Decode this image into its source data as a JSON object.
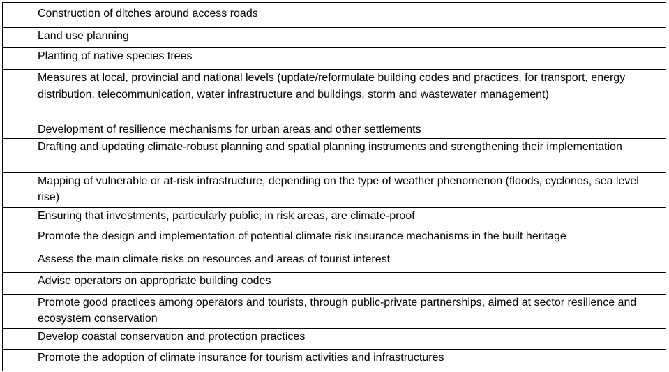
{
  "table": {
    "rows": [
      "Construction of ditches around access roads",
      "Land use planning",
      "Planting of native species trees",
      "Measures at local, provincial and national levels (update/reformulate building codes and practices, for transport, energy distribution, telecommunication, water infrastructure and buildings,  storm and wastewater management)",
      "Development of resilience mechanisms for urban areas and other settlements",
      "Drafting and updating climate-robust planning and spatial planning instruments and strengthening their implementation",
      "Mapping of vulnerable or at-risk infrastructure, depending on the type of weather phenomenon (floods, cyclones, sea level rise)",
      "Ensuring that investments, particularly public, in risk areas, are climate-proof",
      "Promote the design and implementation of potential climate risk insurance mechanisms in the built heritage",
      "Assess the main climate risks on resources and areas of tourist interest",
      "Advise operators on appropriate building codes",
      "Promote good practices among operators and tourists, through public-private partnerships, aimed at sector resilience and ecosystem conservation",
      "Develop coastal conservation and protection practices",
      "Promote the adoption of climate insurance for tourism activities and infrastructures"
    ]
  }
}
